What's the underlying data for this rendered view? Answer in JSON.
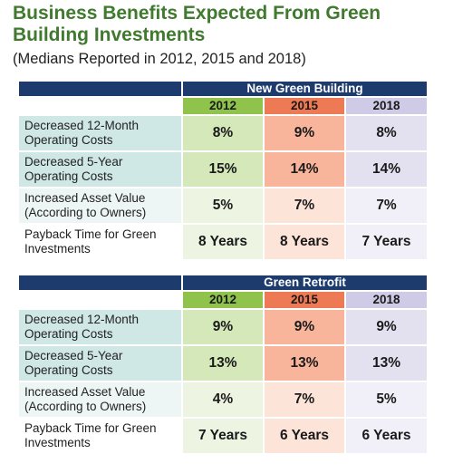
{
  "chart_data": {
    "type": "table",
    "title_line1": "Business Benefits Expected From Green",
    "title_line2": "Building Investments",
    "subtitle": "(Medians Reported in 2012, 2015 and 2018)",
    "years": [
      "2012",
      "2015",
      "2018"
    ],
    "colors": {
      "header_navy": "#1e3b6e",
      "title_green": "#3f7a2e",
      "year_2012": "#8fc34b",
      "year_2015": "#ee7a55",
      "year_2018": "#cfcbe6"
    },
    "sections": [
      {
        "title": "New Green Building",
        "rows": [
          {
            "label_line1": "Decreased 12-Month",
            "label_line2": "Operating Costs",
            "values": [
              "8%",
              "9%",
              "8%"
            ]
          },
          {
            "label_line1": "Decreased 5-Year",
            "label_line2": "Operating Costs",
            "values": [
              "15%",
              "14%",
              "14%"
            ]
          },
          {
            "label_line1": "Increased Asset Value",
            "label_line2": "(According to Owners)",
            "values": [
              "5%",
              "7%",
              "7%"
            ]
          },
          {
            "label_line1": "Payback Time for Green",
            "label_line2": "Investments",
            "values": [
              "8 Years",
              "8 Years",
              "7 Years"
            ]
          }
        ]
      },
      {
        "title": "Green Retrofit",
        "rows": [
          {
            "label_line1": "Decreased 12-Month",
            "label_line2": "Operating Costs",
            "values": [
              "9%",
              "9%",
              "9%"
            ]
          },
          {
            "label_line1": "Decreased 5-Year",
            "label_line2": "Operating Costs",
            "values": [
              "13%",
              "13%",
              "13%"
            ]
          },
          {
            "label_line1": "Increased Asset Value",
            "label_line2": "(According to Owners)",
            "values": [
              "4%",
              "7%",
              "5%"
            ]
          },
          {
            "label_line1": "Payback Time for Green",
            "label_line2": "Investments",
            "values": [
              "7 Years",
              "6 Years",
              "6 Years"
            ]
          }
        ]
      }
    ]
  }
}
